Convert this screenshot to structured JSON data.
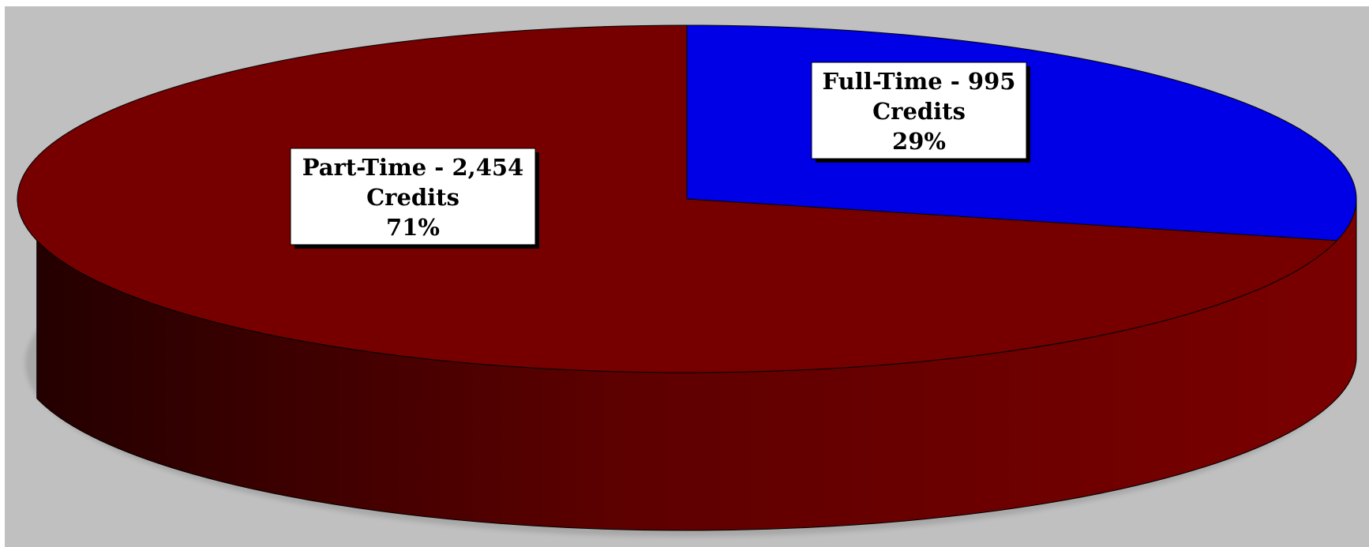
{
  "chart_data": {
    "type": "pie",
    "style": "3d-exploded-flat",
    "background": "#c0c0c0",
    "slices": [
      {
        "name": "Part-Time",
        "value": 2454,
        "percent": "71%",
        "color": "#760000",
        "side_color": "#5a0000",
        "label_lines": [
          "Part-Time - 2,454",
          "Credits",
          "71%"
        ]
      },
      {
        "name": "Full-Time",
        "value": 995,
        "percent": "29%",
        "color": "#0000e6",
        "side_color": "#000088",
        "label_lines": [
          "Full-Time - 995",
          "Credits",
          "29%"
        ]
      }
    ]
  }
}
